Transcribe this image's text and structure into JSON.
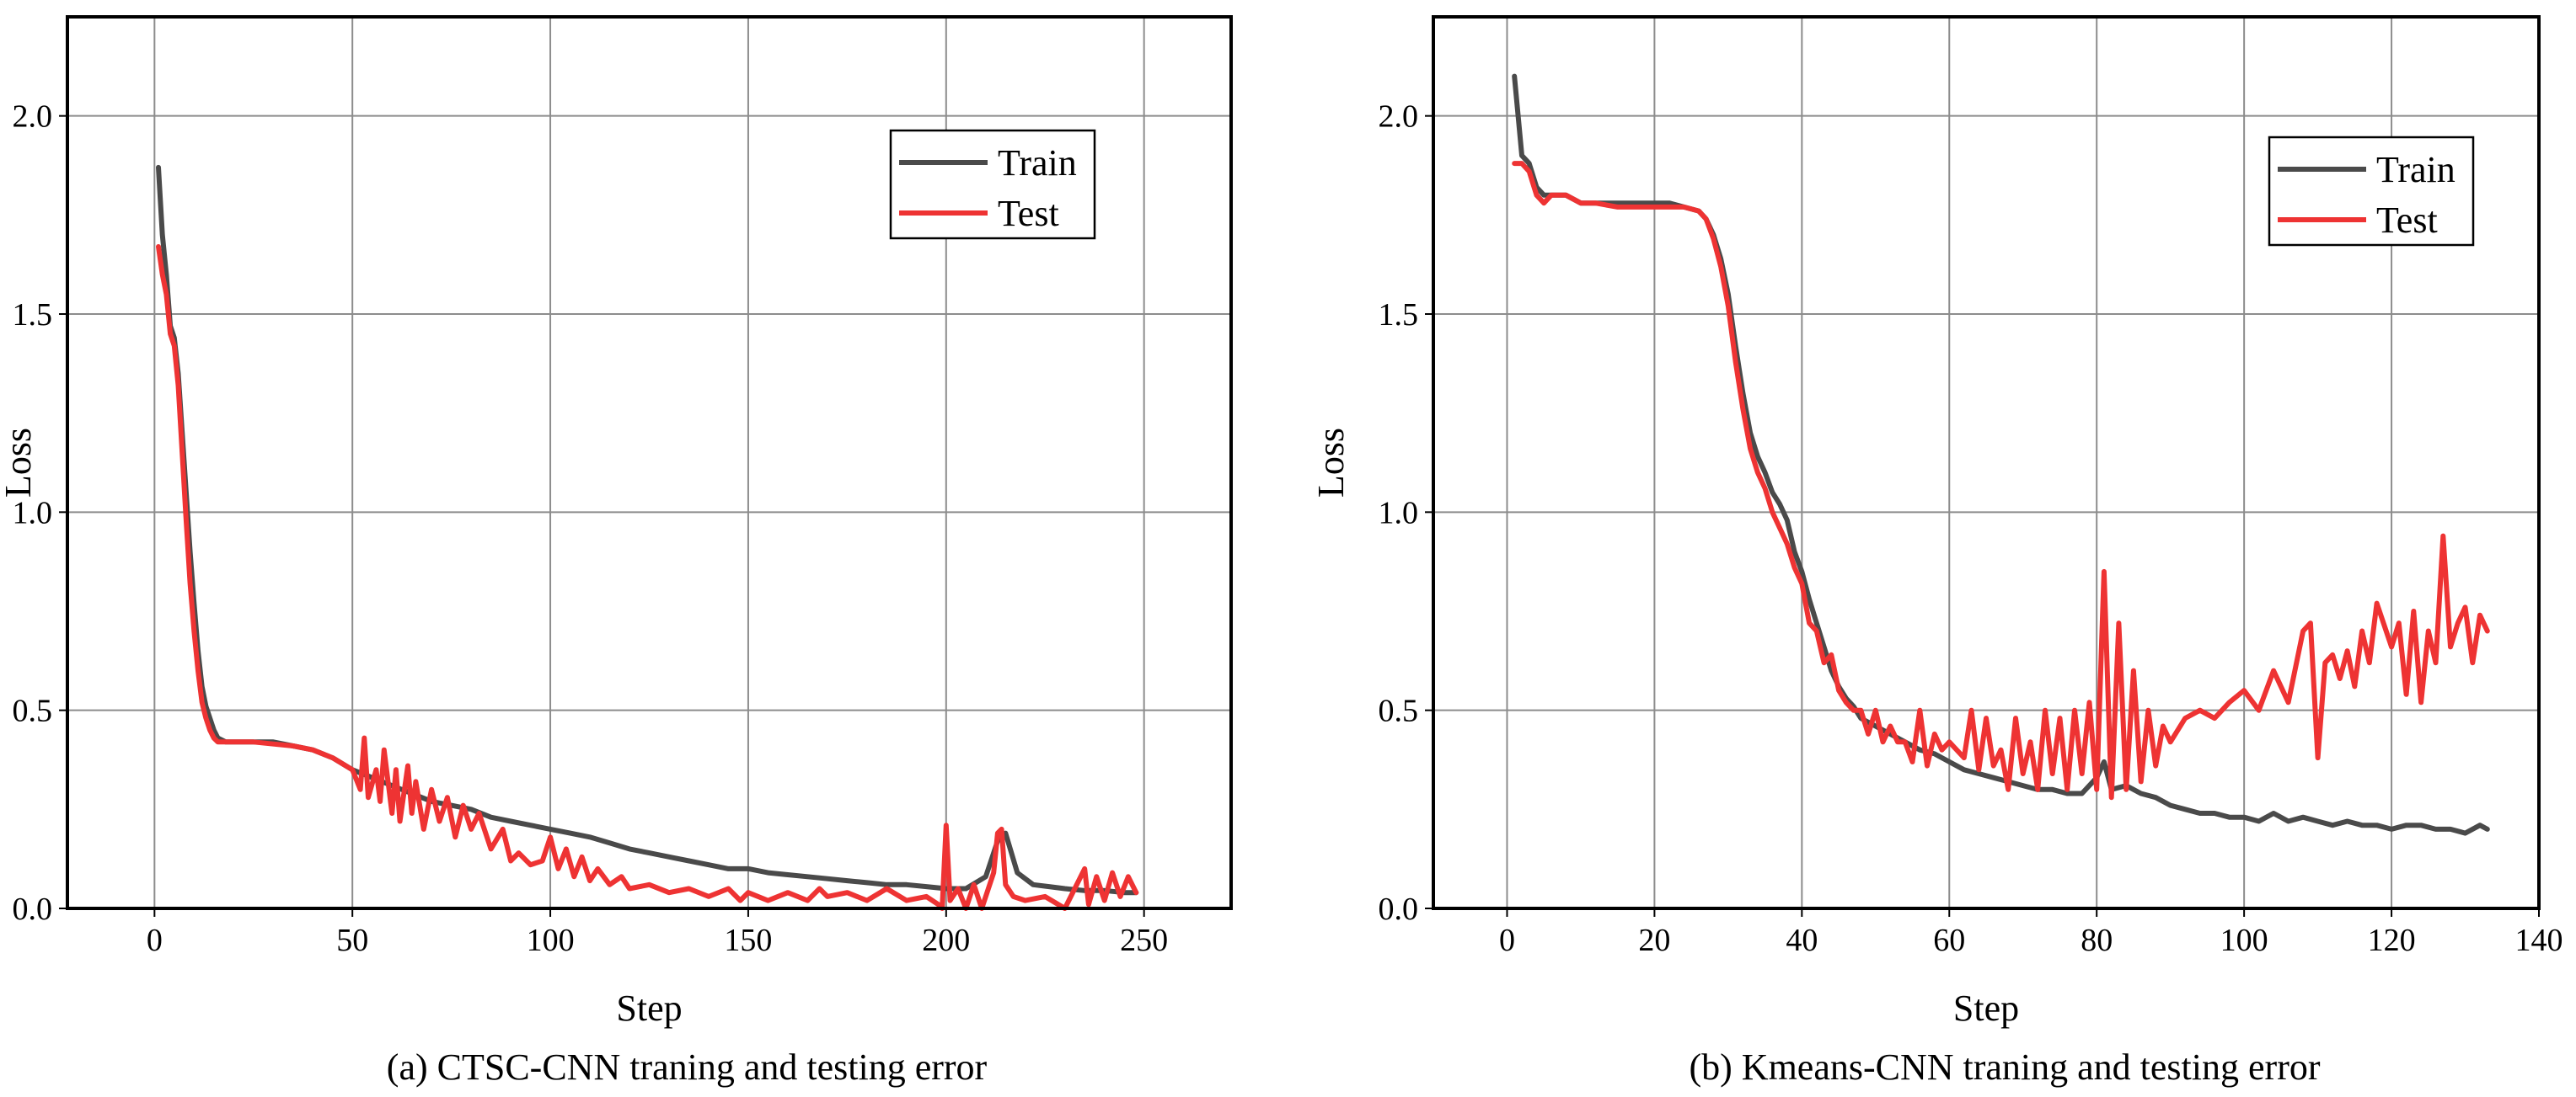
{
  "figure": {
    "captions": [
      "(a) CTSC-CNN traning and testing error",
      "(b) Kmeans-CNN traning and testing error"
    ]
  },
  "colors": {
    "train": "#4a4a4a",
    "test": "#ee3333",
    "grid": "#8c8c8c"
  },
  "chart_data": [
    {
      "type": "line",
      "caption": "(a) CTSC-CNN traning and testing error",
      "xlabel": "Step",
      "ylabel": "Loss",
      "xlim": [
        -22,
        272
      ],
      "ylim": [
        0,
        2.25
      ],
      "xticks": [
        0,
        50,
        100,
        150,
        200,
        250
      ],
      "yticks": [
        0.0,
        0.5,
        1.0,
        1.5,
        2.0
      ],
      "ytick_labels": [
        "0.0",
        "0.5",
        "1.0",
        "1.5",
        "2.0"
      ],
      "grid": true,
      "legend": {
        "position": "top-right",
        "entries": [
          "Train",
          "Test"
        ]
      },
      "series": [
        {
          "name": "Train",
          "color": "#4a4a4a",
          "x": [
            1,
            2,
            3,
            4,
            5,
            6,
            7,
            8,
            9,
            10,
            11,
            12,
            13,
            14,
            15,
            16,
            18,
            20,
            23,
            26,
            30,
            35,
            40,
            45,
            50,
            55,
            60,
            65,
            70,
            75,
            80,
            85,
            90,
            95,
            100,
            105,
            110,
            115,
            120,
            125,
            130,
            135,
            140,
            145,
            150,
            155,
            160,
            165,
            170,
            175,
            180,
            185,
            190,
            195,
            200,
            205,
            210,
            213,
            215,
            218,
            222,
            226,
            230,
            235,
            240,
            245,
            248
          ],
          "values": [
            1.87,
            1.7,
            1.6,
            1.47,
            1.44,
            1.35,
            1.2,
            1.05,
            0.9,
            0.77,
            0.65,
            0.56,
            0.51,
            0.48,
            0.45,
            0.43,
            0.42,
            0.42,
            0.42,
            0.42,
            0.42,
            0.41,
            0.4,
            0.38,
            0.35,
            0.33,
            0.31,
            0.29,
            0.27,
            0.26,
            0.25,
            0.23,
            0.22,
            0.21,
            0.2,
            0.19,
            0.18,
            0.165,
            0.15,
            0.14,
            0.13,
            0.12,
            0.11,
            0.1,
            0.1,
            0.09,
            0.085,
            0.08,
            0.075,
            0.07,
            0.065,
            0.06,
            0.06,
            0.055,
            0.05,
            0.05,
            0.08,
            0.17,
            0.19,
            0.09,
            0.06,
            0.055,
            0.05,
            0.045,
            0.045,
            0.04,
            0.04
          ]
        },
        {
          "name": "Test",
          "color": "#ee3333",
          "x": [
            1,
            2,
            3,
            4,
            5,
            6,
            7,
            8,
            9,
            10,
            11,
            12,
            13,
            14,
            15,
            16,
            18,
            20,
            25,
            30,
            35,
            40,
            45,
            50,
            52,
            53,
            54,
            56,
            57,
            58,
            60,
            61,
            62,
            64,
            65,
            66,
            68,
            70,
            72,
            74,
            76,
            78,
            80,
            82,
            85,
            88,
            90,
            92,
            95,
            98,
            100,
            102,
            104,
            106,
            108,
            110,
            112,
            115,
            118,
            120,
            125,
            130,
            135,
            140,
            145,
            148,
            150,
            155,
            160,
            165,
            168,
            170,
            175,
            180,
            185,
            190,
            195,
            198,
            199,
            200,
            201,
            203,
            205,
            207,
            209,
            212,
            213,
            214,
            215,
            217,
            220,
            225,
            230,
            235,
            236,
            238,
            240,
            242,
            244,
            246,
            248
          ],
          "values": [
            1.67,
            1.6,
            1.55,
            1.45,
            1.42,
            1.32,
            1.15,
            0.98,
            0.82,
            0.7,
            0.6,
            0.52,
            0.48,
            0.45,
            0.43,
            0.42,
            0.42,
            0.42,
            0.42,
            0.415,
            0.41,
            0.4,
            0.38,
            0.35,
            0.3,
            0.43,
            0.28,
            0.35,
            0.27,
            0.4,
            0.24,
            0.35,
            0.22,
            0.36,
            0.24,
            0.32,
            0.2,
            0.3,
            0.22,
            0.28,
            0.18,
            0.26,
            0.2,
            0.24,
            0.15,
            0.2,
            0.12,
            0.14,
            0.11,
            0.12,
            0.18,
            0.1,
            0.15,
            0.08,
            0.13,
            0.07,
            0.1,
            0.06,
            0.08,
            0.05,
            0.06,
            0.04,
            0.05,
            0.03,
            0.05,
            0.02,
            0.04,
            0.02,
            0.04,
            0.02,
            0.05,
            0.03,
            0.04,
            0.02,
            0.05,
            0.02,
            0.03,
            0.01,
            0.0,
            0.21,
            0.02,
            0.05,
            0.0,
            0.06,
            0.0,
            0.09,
            0.19,
            0.2,
            0.06,
            0.03,
            0.02,
            0.03,
            0.0,
            0.1,
            0.01,
            0.08,
            0.02,
            0.09,
            0.03,
            0.08,
            0.04
          ]
        }
      ]
    },
    {
      "type": "line",
      "caption": "(b) Kmeans-CNN traning and testing error",
      "xlabel": "Step",
      "ylabel": "Loss",
      "xlim": [
        -10,
        140
      ],
      "ylim": [
        0,
        2.25
      ],
      "xticks": [
        0,
        20,
        40,
        60,
        80,
        100,
        120,
        140
      ],
      "yticks": [
        0.0,
        0.5,
        1.0,
        1.5,
        2.0
      ],
      "ytick_labels": [
        "0.0",
        "0.5",
        "1.0",
        "1.5",
        "2.0"
      ],
      "grid": true,
      "legend": {
        "position": "top-right",
        "entries": [
          "Train",
          "Test"
        ]
      },
      "series": [
        {
          "name": "Train",
          "color": "#4a4a4a",
          "x": [
            1,
            2,
            3,
            4,
            5,
            6,
            8,
            10,
            12,
            15,
            18,
            20,
            22,
            24,
            26,
            27,
            28,
            29,
            30,
            31,
            32,
            33,
            34,
            35,
            36,
            37,
            38,
            39,
            40,
            41,
            42,
            43,
            44,
            45,
            46,
            47,
            48,
            50,
            52,
            54,
            56,
            58,
            60,
            62,
            64,
            66,
            68,
            70,
            72,
            74,
            76,
            78,
            80,
            81,
            82,
            84,
            86,
            88,
            90,
            92,
            94,
            96,
            98,
            100,
            102,
            104,
            106,
            108,
            110,
            112,
            114,
            116,
            118,
            120,
            122,
            124,
            126,
            128,
            130,
            132,
            133
          ],
          "values": [
            2.1,
            1.9,
            1.88,
            1.82,
            1.8,
            1.8,
            1.8,
            1.78,
            1.78,
            1.78,
            1.78,
            1.78,
            1.78,
            1.77,
            1.76,
            1.74,
            1.7,
            1.64,
            1.55,
            1.42,
            1.3,
            1.2,
            1.14,
            1.1,
            1.05,
            1.02,
            0.98,
            0.9,
            0.85,
            0.78,
            0.72,
            0.66,
            0.6,
            0.56,
            0.53,
            0.51,
            0.48,
            0.46,
            0.44,
            0.42,
            0.4,
            0.39,
            0.37,
            0.35,
            0.34,
            0.33,
            0.32,
            0.31,
            0.3,
            0.3,
            0.29,
            0.29,
            0.33,
            0.37,
            0.3,
            0.31,
            0.29,
            0.28,
            0.26,
            0.25,
            0.24,
            0.24,
            0.23,
            0.23,
            0.22,
            0.24,
            0.22,
            0.23,
            0.22,
            0.21,
            0.22,
            0.21,
            0.21,
            0.2,
            0.21,
            0.21,
            0.2,
            0.2,
            0.19,
            0.21,
            0.2
          ]
        },
        {
          "name": "Test",
          "color": "#ee3333",
          "x": [
            1,
            2,
            3,
            4,
            5,
            6,
            8,
            10,
            12,
            15,
            18,
            20,
            22,
            24,
            26,
            27,
            28,
            29,
            30,
            31,
            32,
            33,
            34,
            35,
            36,
            37,
            38,
            39,
            40,
            41,
            42,
            43,
            44,
            45,
            46,
            47,
            48,
            49,
            50,
            51,
            52,
            53,
            54,
            55,
            56,
            57,
            58,
            59,
            60,
            62,
            63,
            64,
            65,
            66,
            67,
            68,
            69,
            70,
            71,
            72,
            73,
            74,
            75,
            76,
            77,
            78,
            79,
            80,
            81,
            82,
            83,
            84,
            85,
            86,
            87,
            88,
            89,
            90,
            92,
            94,
            96,
            98,
            100,
            102,
            104,
            106,
            108,
            109,
            110,
            111,
            112,
            113,
            114,
            115,
            116,
            117,
            118,
            120,
            121,
            122,
            123,
            124,
            125,
            126,
            127,
            128,
            129,
            130,
            131,
            132,
            133
          ],
          "values": [
            1.88,
            1.88,
            1.86,
            1.8,
            1.78,
            1.8,
            1.8,
            1.78,
            1.78,
            1.77,
            1.77,
            1.77,
            1.77,
            1.77,
            1.76,
            1.74,
            1.69,
            1.62,
            1.52,
            1.38,
            1.26,
            1.16,
            1.1,
            1.06,
            1.0,
            0.96,
            0.92,
            0.86,
            0.82,
            0.72,
            0.7,
            0.62,
            0.64,
            0.55,
            0.52,
            0.5,
            0.5,
            0.44,
            0.5,
            0.42,
            0.46,
            0.42,
            0.42,
            0.37,
            0.5,
            0.36,
            0.44,
            0.4,
            0.42,
            0.38,
            0.5,
            0.35,
            0.48,
            0.36,
            0.4,
            0.3,
            0.48,
            0.34,
            0.42,
            0.3,
            0.5,
            0.34,
            0.48,
            0.3,
            0.5,
            0.34,
            0.52,
            0.3,
            0.85,
            0.28,
            0.72,
            0.3,
            0.6,
            0.32,
            0.5,
            0.36,
            0.46,
            0.42,
            0.48,
            0.5,
            0.48,
            0.52,
            0.55,
            0.5,
            0.6,
            0.52,
            0.7,
            0.72,
            0.38,
            0.62,
            0.64,
            0.58,
            0.65,
            0.56,
            0.7,
            0.62,
            0.77,
            0.66,
            0.72,
            0.54,
            0.75,
            0.52,
            0.7,
            0.62,
            0.94,
            0.66,
            0.72,
            0.76,
            0.62,
            0.74,
            0.7
          ]
        }
      ]
    }
  ]
}
